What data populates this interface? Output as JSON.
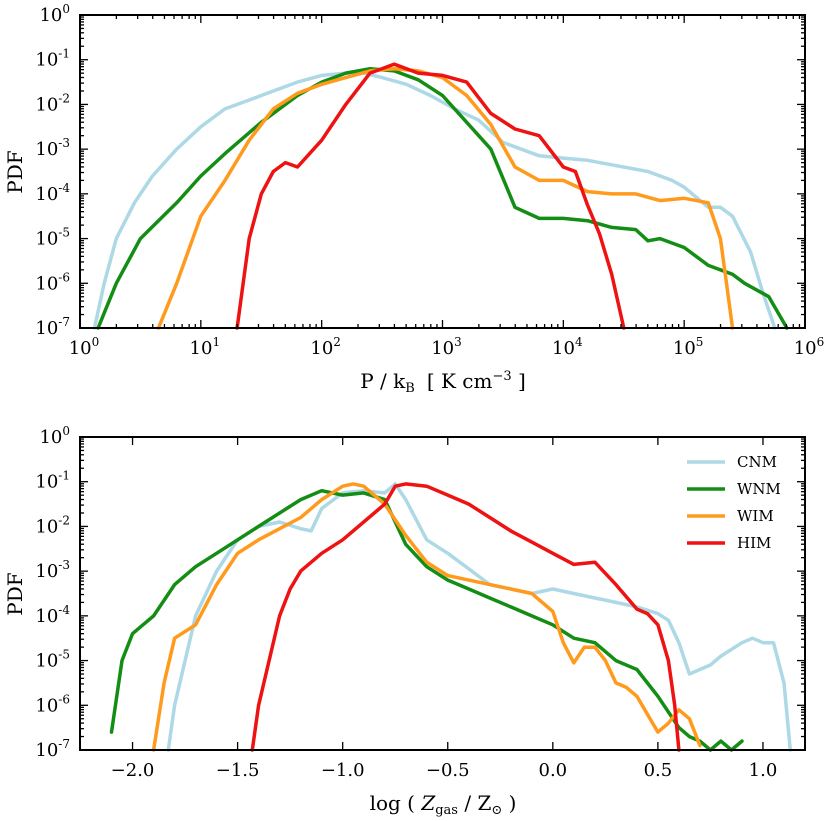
{
  "colors": {
    "CNM": "#add8e6",
    "WNM": "#138d13",
    "WIM": "#ff9a1c",
    "HIM": "#ee1212"
  },
  "chart_data": [
    {
      "type": "line",
      "id": "pressure",
      "xscale": "log",
      "yscale": "log",
      "xlim_exp": [
        0,
        6
      ],
      "ylim_exp": [
        -7,
        0
      ],
      "ylabel": "PDF",
      "xlabel": {
        "main": "P / k",
        "sub": "B",
        "units_pre": "[ K cm",
        "units_sup": "−3",
        "units_post": " ]"
      },
      "x_ticks": [
        {
          "base": "10",
          "exp": "0"
        },
        {
          "base": "10",
          "exp": "1"
        },
        {
          "base": "10",
          "exp": "2"
        },
        {
          "base": "10",
          "exp": "3"
        },
        {
          "base": "10",
          "exp": "4"
        },
        {
          "base": "10",
          "exp": "5"
        },
        {
          "base": "10",
          "exp": "6"
        }
      ],
      "y_ticks": [
        {
          "base": "10",
          "exp": "0"
        },
        {
          "base": "10",
          "exp": "-1"
        },
        {
          "base": "10",
          "exp": "-2"
        },
        {
          "base": "10",
          "exp": "-3"
        },
        {
          "base": "10",
          "exp": "-4"
        },
        {
          "base": "10",
          "exp": "-5"
        },
        {
          "base": "10",
          "exp": "-6"
        },
        {
          "base": "10",
          "exp": "-7"
        }
      ],
      "series": [
        {
          "name": "CNM",
          "log10_x": [
            0.12,
            0.2,
            0.3,
            0.45,
            0.6,
            0.8,
            1.0,
            1.2,
            1.4,
            1.6,
            1.8,
            2.0,
            2.2,
            2.35,
            2.5,
            2.7,
            2.9,
            3.1,
            3.3,
            3.5,
            3.8,
            4.0,
            4.2,
            4.4,
            4.7,
            4.9,
            5.0,
            5.2,
            5.3,
            5.4,
            5.55,
            5.65,
            5.75
          ],
          "log10_y": [
            -7.0,
            -6.0,
            -5.0,
            -4.2,
            -3.6,
            -3.0,
            -2.5,
            -2.1,
            -1.9,
            -1.7,
            -1.5,
            -1.35,
            -1.3,
            -1.3,
            -1.4,
            -1.55,
            -1.8,
            -2.1,
            -2.35,
            -2.85,
            -3.15,
            -3.2,
            -3.25,
            -3.35,
            -3.5,
            -3.7,
            -3.85,
            -4.3,
            -4.3,
            -4.5,
            -5.3,
            -6.2,
            -7.0
          ]
        },
        {
          "name": "WNM",
          "log10_x": [
            0.15,
            0.3,
            0.5,
            0.8,
            1.0,
            1.2,
            1.5,
            1.8,
            2.0,
            2.2,
            2.4,
            2.6,
            2.8,
            3.0,
            3.2,
            3.4,
            3.6,
            3.8,
            4.0,
            4.2,
            4.4,
            4.6,
            4.7,
            4.8,
            5.0,
            5.2,
            5.4,
            5.5,
            5.7,
            5.85
          ],
          "log10_y": [
            -7.0,
            -6.0,
            -5.0,
            -4.2,
            -3.6,
            -3.1,
            -2.4,
            -1.8,
            -1.5,
            -1.3,
            -1.2,
            -1.25,
            -1.45,
            -1.8,
            -2.4,
            -3.0,
            -4.3,
            -4.55,
            -4.55,
            -4.6,
            -4.75,
            -4.8,
            -5.05,
            -5.0,
            -5.2,
            -5.6,
            -5.8,
            -6.0,
            -6.3,
            -7.0
          ]
        },
        {
          "name": "WIM",
          "log10_x": [
            0.65,
            0.8,
            1.0,
            1.2,
            1.4,
            1.6,
            1.8,
            2.0,
            2.2,
            2.4,
            2.6,
            2.8,
            3.0,
            3.2,
            3.4,
            3.6,
            3.8,
            4.0,
            4.2,
            4.4,
            4.6,
            4.8,
            5.0,
            5.2,
            5.3,
            5.35,
            5.4
          ],
          "log10_y": [
            -7.0,
            -6.0,
            -4.5,
            -3.7,
            -2.8,
            -2.1,
            -1.75,
            -1.55,
            -1.4,
            -1.25,
            -1.2,
            -1.25,
            -1.4,
            -1.8,
            -2.45,
            -3.4,
            -3.7,
            -3.7,
            -3.95,
            -4.0,
            -4.0,
            -4.15,
            -4.1,
            -4.2,
            -5.0,
            -6.0,
            -7.0
          ]
        },
        {
          "name": "HIM",
          "log10_x": [
            1.3,
            1.4,
            1.5,
            1.6,
            1.7,
            1.8,
            2.0,
            2.2,
            2.4,
            2.6,
            2.8,
            3.0,
            3.2,
            3.4,
            3.6,
            3.8,
            4.0,
            4.1,
            4.2,
            4.3,
            4.4,
            4.5
          ],
          "log10_y": [
            -7.0,
            -5.0,
            -4.0,
            -3.5,
            -3.3,
            -3.4,
            -2.8,
            -2.0,
            -1.3,
            -1.1,
            -1.3,
            -1.35,
            -1.5,
            -2.2,
            -2.55,
            -2.7,
            -3.4,
            -3.5,
            -4.25,
            -4.9,
            -5.8,
            -7.0
          ]
        }
      ]
    },
    {
      "type": "line",
      "id": "metallicity",
      "xscale": "linear",
      "yscale": "log",
      "xlim": [
        -2.25,
        1.2
      ],
      "ylim_exp": [
        -7,
        0
      ],
      "ylabel": "PDF",
      "xlabel": {
        "pre": "log ( ",
        "z": "Z",
        "z_sub": "gas",
        "mid": " / Z",
        "sun": "⊙",
        "post": " )"
      },
      "x_ticks": [
        "−2.0",
        "−1.5",
        "−1.0",
        "−0.5",
        "0.0",
        "0.5",
        "1.0"
      ],
      "x_tick_values": [
        -2.0,
        -1.5,
        -1.0,
        -0.5,
        0.0,
        0.5,
        1.0
      ],
      "y_ticks": [
        {
          "base": "10",
          "exp": "0"
        },
        {
          "base": "10",
          "exp": "-1"
        },
        {
          "base": "10",
          "exp": "-2"
        },
        {
          "base": "10",
          "exp": "-3"
        },
        {
          "base": "10",
          "exp": "-4"
        },
        {
          "base": "10",
          "exp": "-5"
        },
        {
          "base": "10",
          "exp": "-6"
        },
        {
          "base": "10",
          "exp": "-7"
        }
      ],
      "legend": {
        "placement": "top-right",
        "entries": [
          "CNM",
          "WNM",
          "WIM",
          "HIM"
        ]
      },
      "series": [
        {
          "name": "CNM",
          "x": [
            -1.83,
            -1.8,
            -1.75,
            -1.7,
            -1.6,
            -1.5,
            -1.4,
            -1.3,
            -1.2,
            -1.15,
            -1.1,
            -1.0,
            -0.9,
            -0.8,
            -0.75,
            -0.7,
            -0.6,
            -0.5,
            -0.4,
            -0.3,
            -0.2,
            -0.1,
            0.0,
            0.1,
            0.2,
            0.3,
            0.4,
            0.5,
            0.55,
            0.6,
            0.65,
            0.7,
            0.75,
            0.8,
            0.9,
            0.95,
            1.0,
            1.05,
            1.1,
            1.13
          ],
          "log10_y": [
            -7.0,
            -6.0,
            -5.0,
            -4.0,
            -3.0,
            -2.3,
            -2.0,
            -1.9,
            -2.05,
            -2.1,
            -1.6,
            -1.25,
            -1.2,
            -1.25,
            -1.05,
            -1.4,
            -2.3,
            -2.6,
            -2.95,
            -3.3,
            -3.4,
            -3.5,
            -3.4,
            -3.5,
            -3.6,
            -3.7,
            -3.8,
            -3.95,
            -4.1,
            -4.6,
            -5.3,
            -5.2,
            -5.1,
            -4.9,
            -4.6,
            -4.5,
            -4.6,
            -4.6,
            -5.5,
            -7.0
          ]
        },
        {
          "name": "WNM",
          "x": [
            -2.1,
            -2.05,
            -2.0,
            -1.95,
            -1.9,
            -1.8,
            -1.7,
            -1.6,
            -1.4,
            -1.2,
            -1.1,
            -1.0,
            -0.9,
            -0.8,
            -0.7,
            -0.6,
            -0.5,
            -0.4,
            -0.3,
            -0.2,
            -0.1,
            0.0,
            0.1,
            0.2,
            0.3,
            0.4,
            0.5,
            0.6,
            0.65,
            0.7,
            0.75,
            0.8,
            0.85,
            0.9
          ],
          "log10_y": [
            -6.6,
            -5.0,
            -4.4,
            -4.2,
            -4.0,
            -3.3,
            -2.9,
            -2.6,
            -2.0,
            -1.4,
            -1.2,
            -1.3,
            -1.25,
            -1.4,
            -2.4,
            -2.9,
            -3.2,
            -3.4,
            -3.6,
            -3.8,
            -4.0,
            -4.2,
            -4.5,
            -4.6,
            -5.0,
            -5.2,
            -5.8,
            -6.5,
            -6.7,
            -6.8,
            -7.0,
            -6.8,
            -7.0,
            -6.8
          ]
        },
        {
          "name": "WIM",
          "x": [
            -1.9,
            -1.85,
            -1.8,
            -1.7,
            -1.6,
            -1.5,
            -1.4,
            -1.2,
            -1.1,
            -1.0,
            -0.95,
            -0.9,
            -0.8,
            -0.7,
            -0.6,
            -0.5,
            -0.4,
            -0.3,
            -0.2,
            -0.1,
            0.0,
            0.05,
            0.1,
            0.15,
            0.2,
            0.25,
            0.3,
            0.35,
            0.4,
            0.45,
            0.5,
            0.55,
            0.6,
            0.65,
            0.7
          ],
          "log10_y": [
            -7.0,
            -5.5,
            -4.5,
            -4.2,
            -3.3,
            -2.6,
            -2.3,
            -1.8,
            -1.4,
            -1.1,
            -1.05,
            -1.1,
            -1.5,
            -2.2,
            -2.8,
            -3.1,
            -3.2,
            -3.3,
            -3.4,
            -3.5,
            -3.9,
            -4.6,
            -5.05,
            -4.7,
            -4.7,
            -5.0,
            -5.5,
            -5.6,
            -5.8,
            -6.2,
            -6.6,
            -6.4,
            -6.1,
            -6.3,
            -6.9
          ]
        },
        {
          "name": "HIM",
          "x": [
            -1.43,
            -1.4,
            -1.35,
            -1.3,
            -1.25,
            -1.2,
            -1.1,
            -1.0,
            -0.9,
            -0.8,
            -0.75,
            -0.7,
            -0.6,
            -0.5,
            -0.4,
            -0.3,
            -0.2,
            -0.1,
            0.0,
            0.1,
            0.2,
            0.3,
            0.4,
            0.45,
            0.5,
            0.55,
            0.58,
            0.6
          ],
          "log10_y": [
            -7.0,
            -6.0,
            -5.0,
            -4.0,
            -3.4,
            -3.0,
            -2.6,
            -2.3,
            -1.9,
            -1.5,
            -1.1,
            -1.05,
            -1.1,
            -1.3,
            -1.5,
            -1.8,
            -2.1,
            -2.35,
            -2.6,
            -2.85,
            -2.8,
            -3.3,
            -3.85,
            -3.95,
            -4.2,
            -5.0,
            -6.0,
            -7.0
          ]
        }
      ]
    }
  ]
}
